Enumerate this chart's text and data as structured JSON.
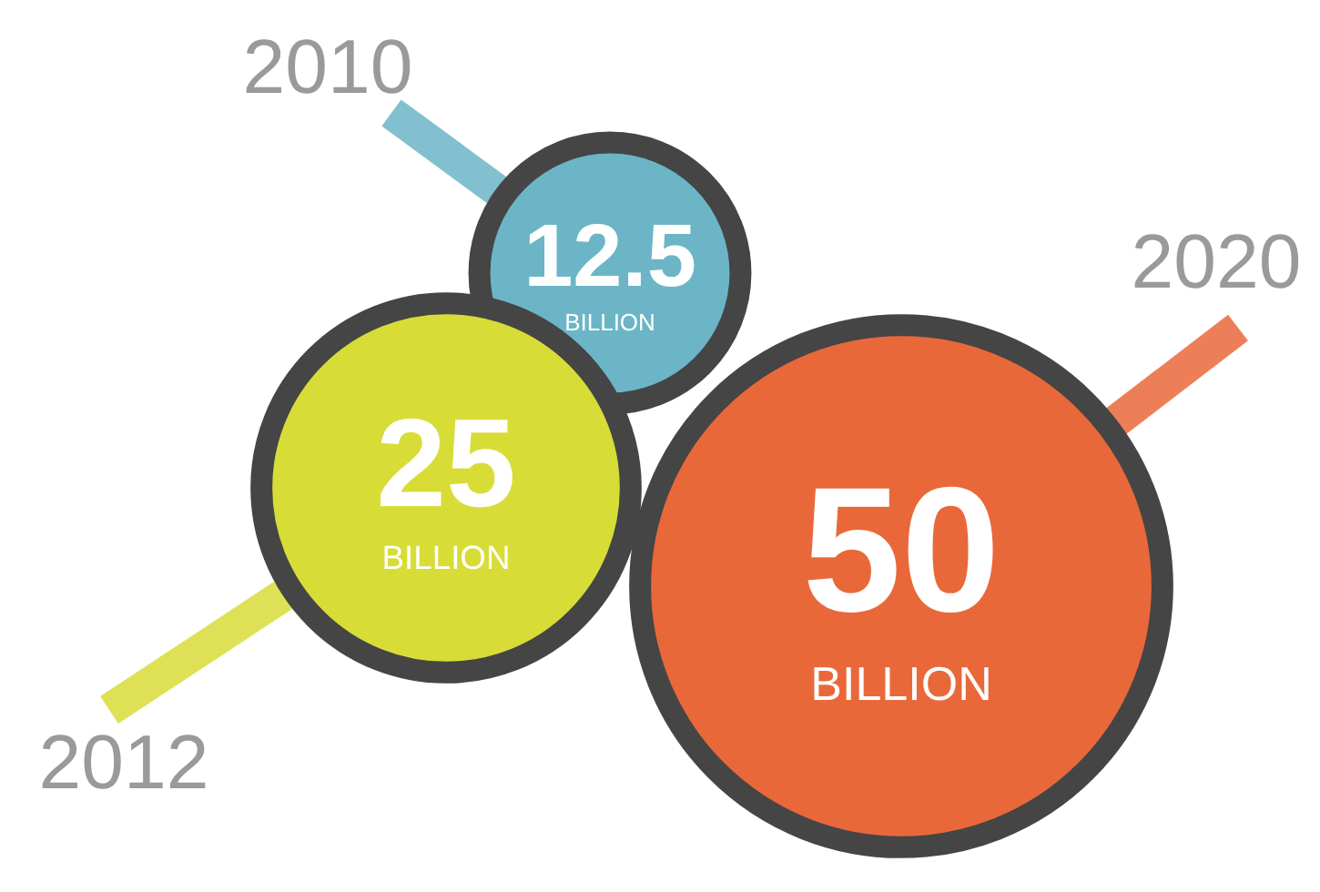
{
  "chart_data": {
    "type": "other",
    "categories": [
      "2010",
      "2012",
      "2020"
    ],
    "values": [
      12.5,
      25,
      50
    ],
    "data_labels": true,
    "annotations": [
      "BILLION",
      "BILLION",
      "BILLION"
    ],
    "colors": [
      "#6cb5c7",
      "#d8dc37",
      "#e9683a"
    ]
  }
}
